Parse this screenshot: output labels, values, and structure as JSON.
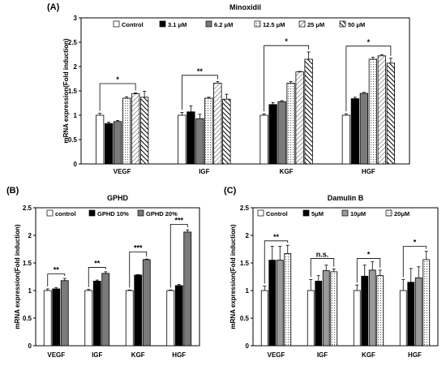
{
  "chart_data": [
    {
      "type": "bar",
      "panel_label": "(A)",
      "title": "Minoxidil",
      "ylabel": "mRNA expression(Fold induction)",
      "xlabel": "",
      "categories": [
        "VEGF",
        "IGF",
        "KGF",
        "HGF"
      ],
      "ylim": [
        0,
        3
      ],
      "yticks": [
        "0",
        "0.5",
        "1",
        "1.5",
        "2",
        "2.5",
        "3"
      ],
      "tick_values": [
        0,
        0.5,
        1,
        1.5,
        2,
        2.5,
        3
      ],
      "legend_position": "top",
      "series": [
        {
          "name": "Control",
          "fill": "white",
          "values": [
            1.0,
            1.0,
            1.0,
            1.0
          ],
          "errors": [
            0.04,
            0.06,
            0.03,
            0.03
          ]
        },
        {
          "name": "3.1 μM",
          "fill": "black",
          "values": [
            0.83,
            1.07,
            1.22,
            1.34
          ],
          "errors": [
            0.03,
            0.12,
            0.04,
            0.03
          ]
        },
        {
          "name": "6.2 μM",
          "fill": "dark-gray",
          "values": [
            0.87,
            0.93,
            1.28,
            1.45
          ],
          "errors": [
            0.02,
            0.09,
            0.02,
            0.02
          ]
        },
        {
          "name": "12.5 μM",
          "fill": "dots",
          "values": [
            1.35,
            1.35,
            1.66,
            2.15
          ],
          "errors": [
            0.03,
            0.02,
            0.03,
            0.04
          ]
        },
        {
          "name": "25 μM",
          "fill": "diag",
          "values": [
            1.44,
            1.66,
            1.89,
            2.22
          ],
          "errors": [
            0.02,
            0.03,
            0.01,
            0.02
          ]
        },
        {
          "name": "50 μM",
          "fill": "diag-bold",
          "values": [
            1.37,
            1.33,
            2.15,
            2.07
          ],
          "errors": [
            0.12,
            0.1,
            0.15,
            0.1
          ]
        }
      ],
      "significance": [
        {
          "category": 0,
          "from": 0,
          "to": 4,
          "y": 1.65,
          "label": "*"
        },
        {
          "category": 1,
          "from": 0,
          "to": 4,
          "y": 1.82,
          "label": "**"
        },
        {
          "category": 2,
          "from": 0,
          "to": 5,
          "y": 2.43,
          "label": "*"
        },
        {
          "category": 3,
          "from": 0,
          "to": 5,
          "y": 2.42,
          "label": "*"
        }
      ]
    },
    {
      "type": "bar",
      "panel_label": "(B)",
      "title": "GPHD",
      "ylabel": "mRNA expression(Fold induction)",
      "xlabel": "",
      "categories": [
        "VEGF",
        "IGF",
        "KGF",
        "HGF"
      ],
      "ylim": [
        0,
        2.5
      ],
      "yticks": [
        "0",
        "0.5",
        "1",
        "1.5",
        "2",
        "2.5"
      ],
      "tick_values": [
        0,
        0.5,
        1,
        1.5,
        2,
        2.5
      ],
      "legend_position": "top",
      "series": [
        {
          "name": "control",
          "fill": "white",
          "values": [
            1.0,
            1.0,
            1.0,
            1.0
          ],
          "errors": [
            0.03,
            0.02,
            0.01,
            0.01
          ]
        },
        {
          "name": "GPHD 10%",
          "fill": "black",
          "values": [
            1.03,
            1.17,
            1.28,
            1.09
          ],
          "errors": [
            0.02,
            0.02,
            0.01,
            0.02
          ]
        },
        {
          "name": "GPHD 20%",
          "fill": "dark-gray",
          "values": [
            1.18,
            1.31,
            1.56,
            2.06
          ],
          "errors": [
            0.04,
            0.03,
            0.01,
            0.04
          ]
        }
      ],
      "significance": [
        {
          "category": 0,
          "from": 0,
          "to": 2,
          "y": 1.3,
          "label": "**"
        },
        {
          "category": 1,
          "from": 0,
          "to": 2,
          "y": 1.42,
          "label": "**"
        },
        {
          "category": 2,
          "from": 0,
          "to": 2,
          "y": 1.7,
          "label": "***"
        },
        {
          "category": 3,
          "from": 0,
          "to": 2,
          "y": 2.2,
          "label": "***"
        }
      ]
    },
    {
      "type": "bar",
      "panel_label": "(C)",
      "title": "Damulin B",
      "ylabel": "mRNA expression(Fold induction)",
      "xlabel": "",
      "categories": [
        "VEGF",
        "IGF",
        "KGF",
        "HGF"
      ],
      "ylim": [
        0,
        2.5
      ],
      "yticks": [
        "0",
        "0.5",
        "1",
        "1.5",
        "2",
        "2.5"
      ],
      "tick_values": [
        0,
        0.5,
        1,
        1.5,
        2,
        2.5
      ],
      "legend_position": "top",
      "series": [
        {
          "name": "Control",
          "fill": "white",
          "values": [
            1.0,
            1.0,
            1.0,
            1.0
          ],
          "errors": [
            0.08,
            0.2,
            0.1,
            0.2
          ]
        },
        {
          "name": "5μM",
          "fill": "black",
          "values": [
            1.55,
            1.17,
            1.26,
            1.15
          ],
          "errors": [
            0.25,
            0.1,
            0.2,
            0.25
          ]
        },
        {
          "name": "10μM",
          "fill": "mid-gray",
          "values": [
            1.55,
            1.36,
            1.37,
            1.23
          ],
          "errors": [
            0.25,
            0.1,
            0.15,
            0.2
          ]
        },
        {
          "name": "20μM",
          "fill": "dots",
          "values": [
            1.67,
            1.34,
            1.27,
            1.56
          ],
          "errors": [
            0.15,
            0.05,
            0.1,
            0.15
          ]
        }
      ],
      "significance": [
        {
          "category": 0,
          "from": 0,
          "to": 3,
          "y": 1.9,
          "label": "**"
        },
        {
          "category": 1,
          "from": 0,
          "to": 3,
          "y": 1.58,
          "label": "n.s."
        },
        {
          "category": 2,
          "from": 0,
          "to": 3,
          "y": 1.58,
          "label": "*"
        },
        {
          "category": 3,
          "from": 0,
          "to": 3,
          "y": 1.8,
          "label": "*"
        }
      ]
    }
  ]
}
